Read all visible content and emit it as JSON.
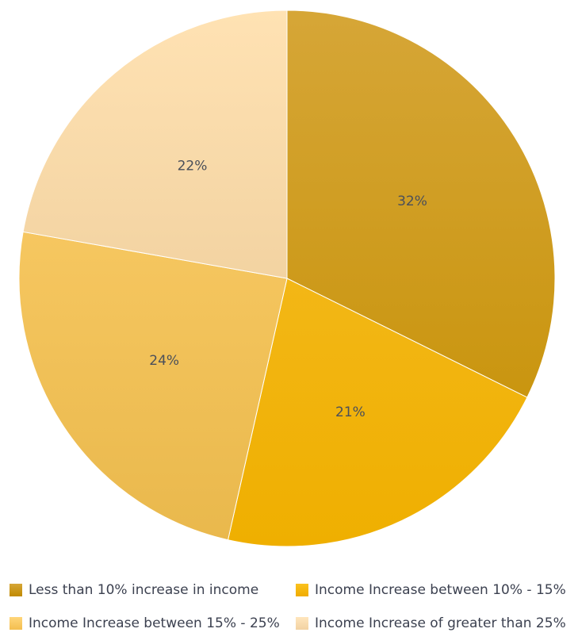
{
  "chart_data": {
    "type": "pie",
    "title": "",
    "categories": [
      "Less than 10% increase in income",
      "Income Increase between 10% - 15%",
      "Income Increase between 15% - 25%",
      "Income Increase of greater than 25%"
    ],
    "values": [
      32,
      21,
      24,
      22
    ],
    "labels": [
      "32%",
      "21%",
      "24%",
      "22%"
    ],
    "start_angle_deg": 0,
    "direction": "clockwise",
    "legend_position": "bottom",
    "colors": [
      {
        "top": "#d6a637",
        "bottom": "#c58f00",
        "swatch_top": "#d6a637",
        "swatch_bottom": "#c08a00"
      },
      {
        "top": "#f7bf2c",
        "bottom": "#efaf00",
        "swatch_top": "#fbc21f",
        "swatch_bottom": "#f0ac00"
      },
      {
        "top": "#ffd16e",
        "bottom": "#e9b84c",
        "swatch_top": "#ffd67a",
        "swatch_bottom": "#f3be4f"
      },
      {
        "top": "#ffe2b3",
        "bottom": "#e6c490",
        "swatch_top": "#ffe6bd",
        "swatch_bottom": "#f2d2a2"
      }
    ]
  }
}
